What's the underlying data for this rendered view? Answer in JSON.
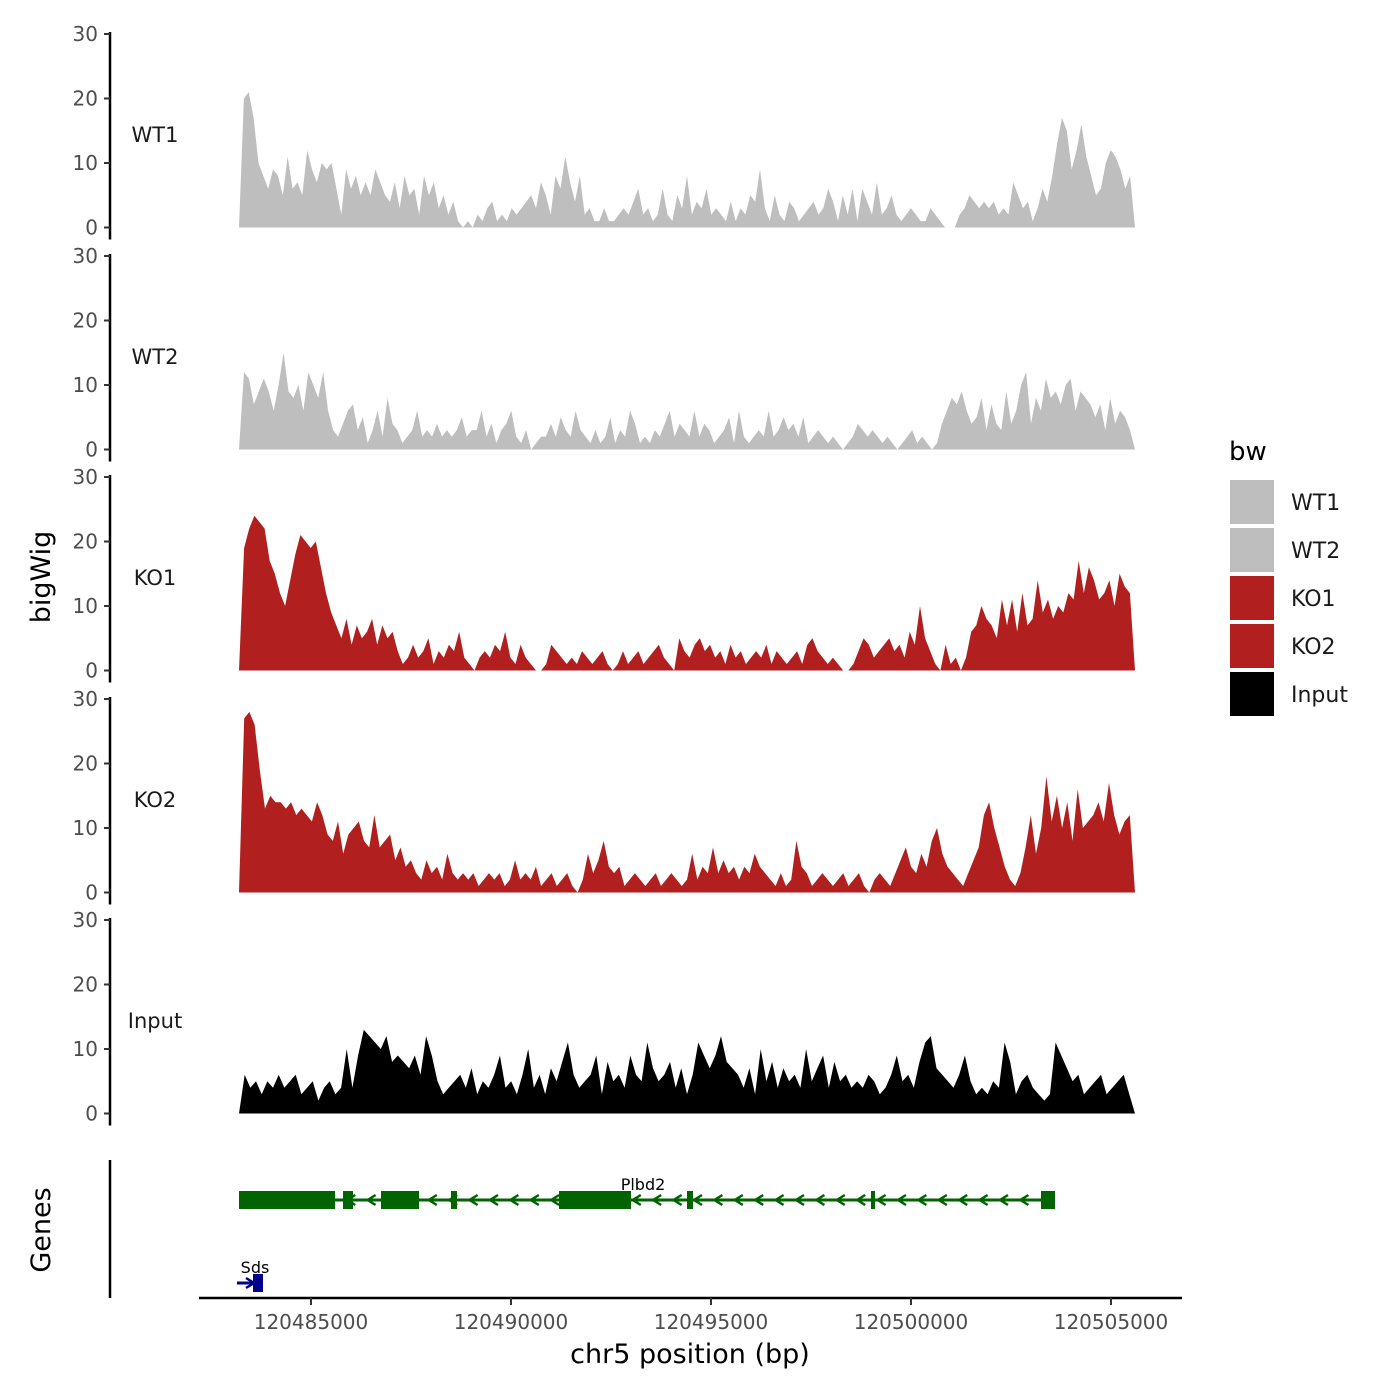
{
  "chart_data": {
    "type": "area",
    "x_label": "chr5 position (bp)",
    "y_label": "bigWig",
    "genes_label": "Genes",
    "xlim": [
      120481800,
      120506500
    ],
    "ylim": [
      0,
      30
    ],
    "y_ticks": [
      "0",
      "10",
      "20",
      "30"
    ],
    "x_ticks": [
      {
        "value": 120485000,
        "label": "120485000"
      },
      {
        "value": 120490000,
        "label": "120490000"
      },
      {
        "value": 120495000,
        "label": "120495000"
      },
      {
        "value": 120500000,
        "label": "120500000"
      },
      {
        "value": 120505000,
        "label": "120505000"
      }
    ],
    "legend": {
      "title": "bw",
      "entries": [
        {
          "label": "WT1",
          "color": "#bebebe"
        },
        {
          "label": "WT2",
          "color": "#bebebe"
        },
        {
          "label": "KO1",
          "color": "#b21f1f"
        },
        {
          "label": "KO2",
          "color": "#b21f1f"
        },
        {
          "label": "Input",
          "color": "#000000"
        }
      ]
    },
    "series": [
      {
        "name": "WT1",
        "color": "#bebebe",
        "x_start": 120483200,
        "x_end": 120505600,
        "values": [
          0,
          20,
          21,
          17,
          10,
          8,
          6,
          9,
          8,
          5,
          11,
          6,
          7,
          5,
          12,
          9,
          7,
          10,
          9,
          10,
          6,
          2,
          9,
          6,
          8,
          5,
          7,
          5,
          9,
          7,
          5,
          4,
          7,
          3,
          8,
          5,
          6,
          2,
          8,
          5,
          7,
          3,
          5,
          2,
          4,
          1,
          0,
          1,
          0,
          2,
          1,
          3,
          4,
          1,
          2,
          1,
          3,
          2,
          3,
          4,
          5,
          3,
          7,
          5,
          2,
          8,
          6,
          11,
          7,
          4,
          8,
          2,
          3,
          1,
          1,
          3,
          1,
          1,
          2,
          3,
          2,
          4,
          6,
          2,
          3,
          1,
          2,
          6,
          2,
          1,
          5,
          3,
          8,
          2,
          4,
          3,
          6,
          2,
          3,
          2,
          1,
          4,
          1,
          3,
          2,
          5,
          4,
          9,
          3,
          1,
          5,
          2,
          1,
          4,
          3,
          1,
          2,
          3,
          4,
          2,
          3,
          6,
          4,
          1,
          5,
          2,
          6,
          1,
          6,
          4,
          2,
          7,
          2,
          3,
          5,
          2,
          1,
          2,
          3,
          2,
          1,
          1,
          3,
          2,
          1,
          0,
          0,
          0,
          2,
          3,
          5,
          4,
          3,
          4,
          3,
          4,
          2,
          3,
          2,
          7,
          5,
          3,
          4,
          1,
          3,
          6,
          4,
          8,
          13,
          17,
          15,
          9,
          12,
          16,
          11,
          8,
          5,
          6,
          10,
          12,
          11,
          9,
          6,
          8,
          0
        ]
      },
      {
        "name": "WT2",
        "color": "#bebebe",
        "x_start": 120483200,
        "x_end": 120505600,
        "values": [
          0,
          12,
          11,
          7,
          9,
          11,
          9,
          6,
          10,
          15,
          9,
          8,
          10,
          6,
          12,
          10,
          8,
          12,
          6,
          3,
          2,
          4,
          6,
          7,
          3,
          5,
          1,
          3,
          6,
          2,
          8,
          4,
          3,
          1,
          2,
          3,
          6,
          2,
          3,
          2,
          4,
          2,
          3,
          2,
          3,
          5,
          2,
          3,
          3,
          6,
          2,
          4,
          1,
          3,
          4,
          6,
          2,
          1,
          3,
          0,
          1,
          2,
          2,
          4,
          2,
          5,
          3,
          2,
          6,
          3,
          2,
          1,
          3,
          1,
          2,
          5,
          1,
          3,
          2,
          6,
          4,
          1,
          2,
          1,
          3,
          2,
          4,
          6,
          2,
          4,
          3,
          2,
          6,
          2,
          4,
          3,
          1,
          2,
          3,
          5,
          1,
          6,
          2,
          1,
          2,
          3,
          2,
          6,
          2,
          3,
          5,
          3,
          4,
          2,
          5,
          1,
          2,
          3,
          2,
          1,
          2,
          1,
          0,
          1,
          2,
          4,
          3,
          2,
          3,
          2,
          1,
          2,
          1,
          0,
          1,
          2,
          3,
          1,
          2,
          1,
          0,
          1,
          4,
          6,
          8,
          7,
          9,
          6,
          4,
          5,
          8,
          3,
          7,
          4,
          3,
          9,
          4,
          6,
          10,
          12,
          4,
          8,
          6,
          11,
          8,
          9,
          7,
          10,
          11,
          6,
          9,
          8,
          7,
          5,
          7,
          3,
          8,
          4,
          6,
          5,
          3,
          0
        ]
      },
      {
        "name": "KO1",
        "color": "#b21f1f",
        "x_start": 120483200,
        "x_end": 120505600,
        "values": [
          0,
          19,
          22,
          24,
          23,
          22,
          17,
          15,
          12,
          10,
          14,
          18,
          21,
          20,
          19,
          20,
          16,
          12,
          9,
          7,
          5,
          8,
          4,
          7,
          5,
          6,
          8,
          4,
          7,
          5,
          6,
          3,
          1,
          2,
          4,
          2,
          3,
          5,
          1,
          3,
          2,
          4,
          3,
          6,
          2,
          1,
          0,
          2,
          3,
          2,
          4,
          3,
          6,
          2,
          1,
          4,
          2,
          1,
          0,
          0,
          1,
          4,
          3,
          2,
          1,
          2,
          1,
          3,
          2,
          1,
          2,
          3,
          1,
          0,
          1,
          3,
          1,
          2,
          3,
          1,
          2,
          3,
          4,
          2,
          1,
          0,
          5,
          3,
          2,
          4,
          5,
          3,
          4,
          2,
          3,
          1,
          4,
          2,
          3,
          1,
          2,
          3,
          2,
          4,
          1,
          3,
          2,
          1,
          2,
          3,
          1,
          4,
          5,
          3,
          2,
          1,
          2,
          1,
          0,
          0,
          1,
          3,
          5,
          4,
          2,
          3,
          4,
          5,
          3,
          4,
          2,
          6,
          4,
          10,
          5,
          3,
          1,
          0,
          4,
          1,
          2,
          0,
          2,
          6,
          7,
          10,
          8,
          7,
          5,
          11,
          7,
          11,
          6,
          12,
          7,
          8,
          14,
          9,
          11,
          8,
          10,
          9,
          12,
          11,
          17,
          12,
          16,
          14,
          11,
          12,
          14,
          10,
          15,
          13,
          12,
          0
        ]
      },
      {
        "name": "KO2",
        "color": "#b21f1f",
        "x_start": 120483200,
        "x_end": 120505600,
        "values": [
          0,
          27,
          28,
          26,
          19,
          13,
          15,
          14,
          14,
          13,
          14,
          12,
          13,
          12,
          11,
          14,
          12,
          9,
          8,
          11,
          6,
          9,
          10,
          11,
          8,
          7,
          12,
          7,
          8,
          9,
          5,
          7,
          4,
          5,
          3,
          2,
          5,
          3,
          4,
          2,
          6,
          3,
          2,
          3,
          2,
          3,
          1,
          2,
          3,
          2,
          3,
          1,
          2,
          5,
          2,
          3,
          2,
          4,
          1,
          2,
          3,
          1,
          2,
          3,
          1,
          0,
          2,
          6,
          3,
          5,
          8,
          4,
          3,
          4,
          1,
          2,
          3,
          2,
          1,
          2,
          3,
          1,
          2,
          3,
          2,
          1,
          2,
          6,
          2,
          4,
          3,
          7,
          3,
          5,
          3,
          4,
          2,
          4,
          3,
          6,
          4,
          3,
          2,
          1,
          3,
          1,
          2,
          8,
          4,
          3,
          1,
          2,
          3,
          2,
          1,
          2,
          3,
          1,
          2,
          3,
          1,
          0,
          2,
          3,
          2,
          1,
          3,
          5,
          7,
          4,
          3,
          6,
          4,
          8,
          10,
          6,
          4,
          3,
          2,
          1,
          3,
          5,
          7,
          12,
          14,
          10,
          7,
          4,
          2,
          1,
          3,
          7,
          12,
          6,
          10,
          18,
          11,
          15,
          10,
          14,
          8,
          16,
          10,
          11,
          12,
          14,
          11,
          17,
          12,
          9,
          11,
          12,
          0
        ]
      },
      {
        "name": "Input",
        "color": "#000000",
        "x_start": 120483200,
        "x_end": 120505600,
        "values": [
          0,
          6,
          4,
          5,
          3,
          5,
          4,
          6,
          4,
          5,
          6,
          3,
          4,
          5,
          2,
          4,
          5,
          3,
          4,
          10,
          4,
          9,
          13,
          12,
          11,
          10,
          12,
          8,
          9,
          8,
          7,
          9,
          6,
          12,
          9,
          5,
          3,
          4,
          5,
          6,
          4,
          7,
          3,
          5,
          4,
          6,
          9,
          4,
          5,
          3,
          6,
          10,
          4,
          6,
          3,
          7,
          5,
          8,
          11,
          6,
          4,
          5,
          6,
          9,
          3,
          8,
          5,
          6,
          4,
          9,
          6,
          5,
          11,
          7,
          5,
          6,
          8,
          4,
          7,
          3,
          6,
          11,
          9,
          7,
          9,
          12,
          8,
          7,
          6,
          4,
          7,
          3,
          10,
          5,
          8,
          4,
          7,
          5,
          6,
          4,
          10,
          5,
          7,
          9,
          4,
          8,
          5,
          6,
          4,
          5,
          4,
          6,
          5,
          3,
          4,
          6,
          9,
          5,
          6,
          4,
          8,
          11,
          12,
          7,
          6,
          5,
          4,
          6,
          9,
          5,
          3,
          4,
          3,
          5,
          4,
          11,
          8,
          3,
          5,
          6,
          4,
          3,
          2,
          3,
          11,
          9,
          7,
          5,
          6,
          3,
          4,
          5,
          6,
          3,
          4,
          5,
          6,
          3,
          0
        ]
      }
    ],
    "genes": [
      {
        "name": "Plbd2",
        "color": "#006400",
        "strand": "-",
        "start": 120483200,
        "end": 120503600,
        "exons": [
          [
            120483200,
            120485600
          ],
          [
            120485800,
            120486050
          ],
          [
            120486750,
            120487700
          ],
          [
            120488500,
            120488650
          ],
          [
            120491200,
            120492800
          ],
          [
            120492800,
            120493000
          ],
          [
            120494400,
            120494550
          ],
          [
            120499000,
            120499100
          ],
          [
            120503250,
            120503600
          ]
        ]
      },
      {
        "name": "Sds",
        "color": "#00008b",
        "strand": "+",
        "start": 120483150,
        "end": 120483800,
        "exons": [
          [
            120483550,
            120483800
          ]
        ]
      }
    ]
  }
}
